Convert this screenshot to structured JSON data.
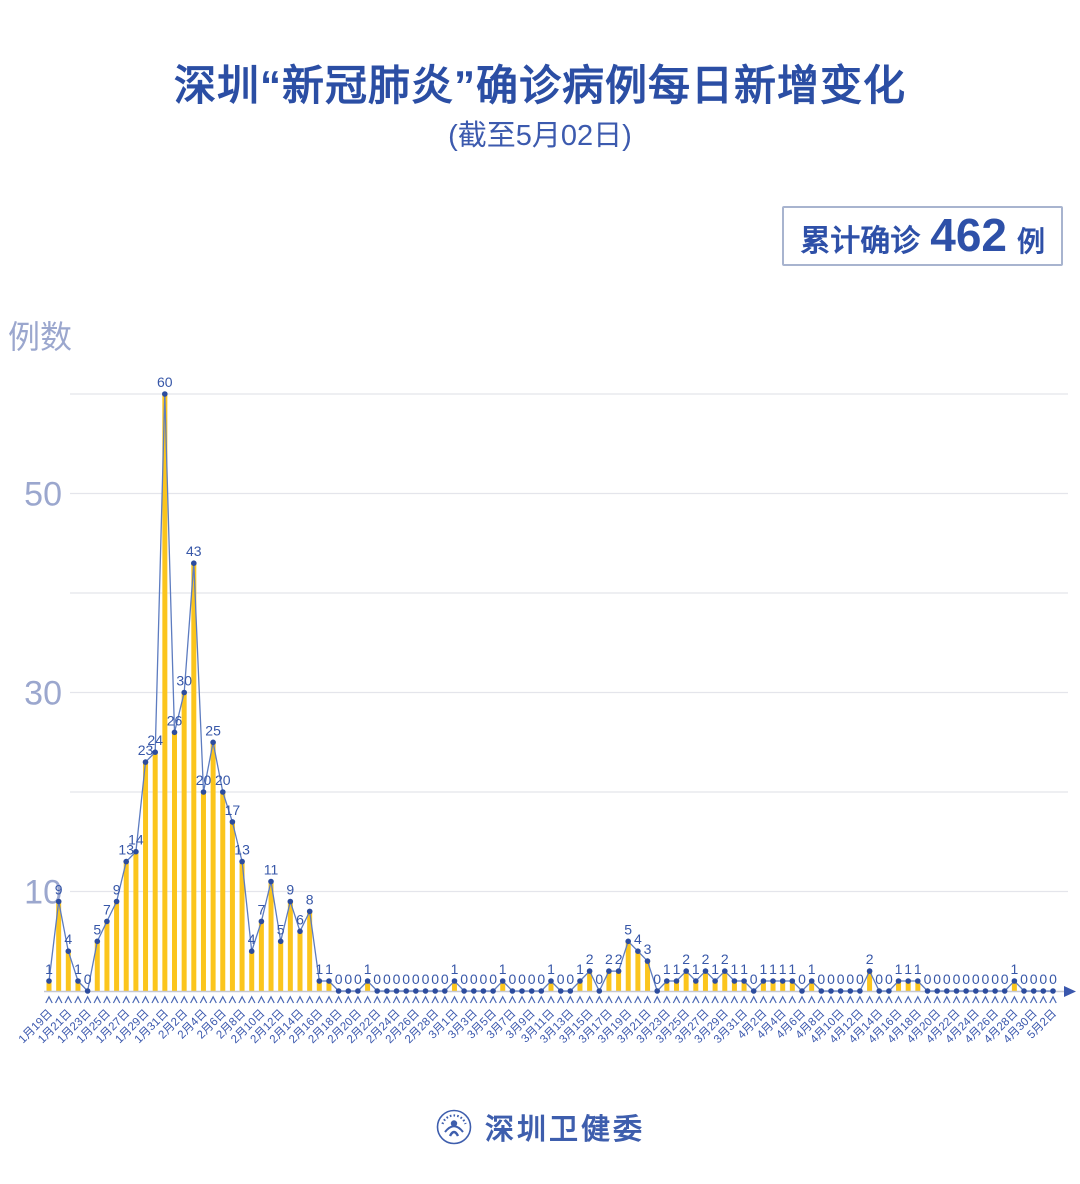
{
  "header": {
    "title": "深圳“新冠肺炎”确诊病例每日新增变化",
    "subtitle": "(截至5月02日)"
  },
  "badge": {
    "label": "累计确诊",
    "value": "462",
    "unit": "例"
  },
  "footer": {
    "org": "深圳卫健委"
  },
  "colors": {
    "title_blue": "#2B4EA4",
    "bar": "#FBC51D",
    "line": "#5D7CC0",
    "dot": "#2C4C9E",
    "value_label": "#3757A8",
    "axis_muted": "#9BA7CE",
    "gridline": "#E4E5EB",
    "axis_line": "#C6C8D2",
    "tick": "#4A68B5",
    "date_label": "#3A57AD"
  },
  "chart_data": {
    "type": "bar",
    "title": "深圳“新冠肺炎”确诊病例每日新增变化",
    "subtitle": "(截至5月02日)",
    "xlabel": "",
    "ylabel": "例数",
    "ylim": [
      0,
      62
    ],
    "y_ticks": [
      10,
      30,
      50
    ],
    "y_gridlines": [
      10,
      20,
      30,
      40,
      50,
      60
    ],
    "grid": "horizontal",
    "legend": "none",
    "total_label": "累计确诊 462 例",
    "total": 462,
    "x_label_step": 2,
    "x_tick_labels": [
      "1月19日",
      "1月21日",
      "1月23日",
      "1月25日",
      "1月27日",
      "1月29日",
      "1月31日",
      "2月2日",
      "2月4日",
      "2月6日",
      "2月8日",
      "2月10日",
      "2月12日",
      "2月14日",
      "2月16日",
      "2月18日",
      "2月20日",
      "2月22日",
      "2月24日",
      "2月26日",
      "2月28日",
      "3月1日",
      "3月3日",
      "3月5日",
      "3月7日",
      "3月9日",
      "3月11日",
      "3月13日",
      "3月15日",
      "3月17日",
      "3月19日",
      "3月21日",
      "3月23日",
      "3月25日",
      "3月27日",
      "3月29日",
      "3月31日",
      "4月2日",
      "4月4日",
      "4月6日",
      "4月8日",
      "4月10日",
      "4月12日",
      "4月14日",
      "4月16日",
      "4月18日",
      "4月20日",
      "4月22日",
      "4月24日",
      "4月26日",
      "4月28日",
      "4月30日",
      "5月2日"
    ],
    "values": [
      1,
      9,
      4,
      1,
      0,
      5,
      7,
      9,
      13,
      14,
      23,
      24,
      60,
      26,
      30,
      43,
      20,
      25,
      20,
      17,
      13,
      4,
      7,
      11,
      5,
      9,
      6,
      8,
      1,
      1,
      0,
      0,
      0,
      1,
      0,
      0,
      0,
      0,
      0,
      0,
      0,
      0,
      1,
      0,
      0,
      0,
      0,
      1,
      0,
      0,
      0,
      0,
      1,
      0,
      0,
      1,
      2,
      0,
      2,
      2,
      5,
      4,
      3,
      0,
      1,
      1,
      2,
      1,
      2,
      1,
      2,
      1,
      1,
      0,
      1,
      1,
      1,
      1,
      0,
      1,
      0,
      0,
      0,
      0,
      0,
      2,
      0,
      0,
      1,
      1,
      1,
      0,
      0,
      0,
      0,
      0,
      0,
      0,
      0,
      0,
      1,
      0,
      0,
      0,
      0
    ]
  }
}
